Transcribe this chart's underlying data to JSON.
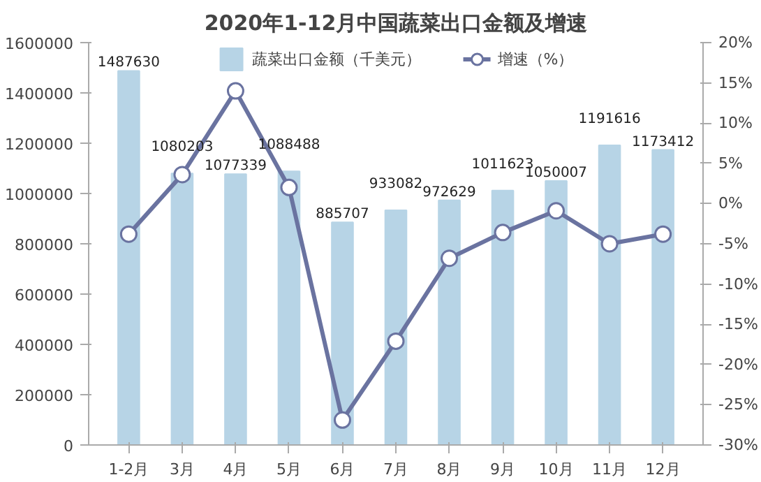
{
  "chart_data": {
    "type": "bar",
    "title": "2020年1-12月中国蔬菜出口金额及增速",
    "categories": [
      "1-2月",
      "3月",
      "4月",
      "5月",
      "6月",
      "7月",
      "8月",
      "9月",
      "10月",
      "11月",
      "12月"
    ],
    "series": [
      {
        "name": "蔬菜出口金额（千美元）",
        "color": "#b7d4e6",
        "values": [
          1487630,
          1080203,
          1077339,
          1088488,
          885707,
          933082,
          972629,
          1011623,
          1050007,
          1191616,
          1173412
        ],
        "value_labels": [
          "1487630",
          "1080203",
          "1077339",
          "1088488",
          "885707",
          "933082",
          "972629",
          "1011623",
          "1050007",
          "1191616",
          "1173412"
        ]
      },
      {
        "name": "增速（%）",
        "type": "line",
        "axis": "y2",
        "color": "#6a73a0",
        "values": [
          -3.8,
          3.6,
          14.0,
          2.0,
          -26.9,
          -17.1,
          -6.8,
          -3.6,
          -0.9,
          -5.0,
          -3.8
        ]
      }
    ],
    "ylim": [
      0,
      1600000
    ],
    "yticks": [
      0,
      200000,
      400000,
      600000,
      800000,
      1000000,
      1200000,
      1400000,
      1600000
    ],
    "y2lim": [
      -30,
      20
    ],
    "y2ticks": [
      {
        "value": -30,
        "label": "-30%"
      },
      {
        "value": -25,
        "label": "-25%"
      },
      {
        "value": -20,
        "label": "-20%"
      },
      {
        "value": -15,
        "label": "-15%"
      },
      {
        "value": -10,
        "label": "-10%"
      },
      {
        "value": -5,
        "label": "-5%"
      },
      {
        "value": 0,
        "label": "0%"
      },
      {
        "value": 5,
        "label": "5%"
      },
      {
        "value": 10,
        "label": "10%"
      },
      {
        "value": 15,
        "label": "15%"
      },
      {
        "value": 20,
        "label": "20%"
      }
    ],
    "legend": "top",
    "grid": false,
    "marker": "circle",
    "line_style": "solid"
  }
}
